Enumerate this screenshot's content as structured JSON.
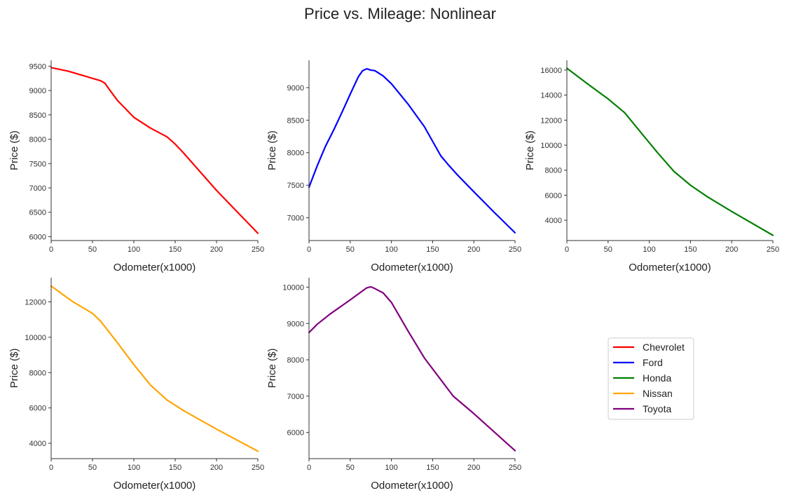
{
  "figure": {
    "title": "Price vs. Mileage: Nonlinear"
  },
  "chart_data": [
    {
      "type": "line",
      "series": [
        {
          "name": "Chevrolet",
          "color": "#ff0000",
          "x": [
            0,
            20,
            40,
            60,
            65,
            70,
            80,
            100,
            120,
            140,
            150,
            160,
            200,
            250
          ],
          "values": [
            9470,
            9400,
            9300,
            9200,
            9150,
            9030,
            8800,
            8450,
            8230,
            8050,
            7900,
            7720,
            6950,
            6070
          ]
        }
      ],
      "xlabel": "Odometer(x1000)",
      "ylabel": "Price ($)",
      "xlim": [
        0,
        250
      ],
      "ylim": [
        5920,
        9620
      ],
      "xticks": [
        0,
        50,
        100,
        150,
        200,
        250
      ],
      "yticks": [
        6000,
        6500,
        7000,
        7500,
        8000,
        8500,
        9000,
        9500
      ],
      "grid": false
    },
    {
      "type": "line",
      "series": [
        {
          "name": "Ford",
          "color": "#0000ff",
          "x": [
            0,
            10,
            20,
            30,
            40,
            50,
            60,
            65,
            70,
            75,
            80,
            90,
            100,
            120,
            140,
            160,
            170,
            180,
            200,
            225,
            250
          ],
          "values": [
            7470,
            7800,
            8100,
            8350,
            8620,
            8900,
            9170,
            9260,
            9290,
            9270,
            9260,
            9180,
            9060,
            8750,
            8400,
            7950,
            7800,
            7660,
            7400,
            7080,
            6770
          ]
        }
      ],
      "xlabel": "Odometer(x1000)",
      "ylabel": "Price ($)",
      "xlim": [
        0,
        250
      ],
      "ylim": [
        6650,
        9420
      ],
      "xticks": [
        0,
        50,
        100,
        150,
        200,
        250
      ],
      "yticks": [
        7000,
        7500,
        8000,
        8500,
        9000
      ],
      "grid": false
    },
    {
      "type": "line",
      "series": [
        {
          "name": "Honda",
          "color": "#008000",
          "x": [
            0,
            25,
            50,
            70,
            90,
            110,
            130,
            150,
            170,
            200,
            250
          ],
          "values": [
            16150,
            14900,
            13700,
            12600,
            11000,
            9400,
            7900,
            6800,
            5900,
            4700,
            2800
          ]
        }
      ],
      "xlabel": "Odometer(x1000)",
      "ylabel": "Price ($)",
      "xlim": [
        0,
        250
      ],
      "ylim": [
        2380,
        16780
      ],
      "xticks": [
        0,
        50,
        100,
        150,
        200,
        250
      ],
      "yticks": [
        4000,
        6000,
        8000,
        10000,
        12000,
        14000,
        16000
      ],
      "grid": false
    },
    {
      "type": "line",
      "series": [
        {
          "name": "Nissan",
          "color": "#ffa500",
          "x": [
            0,
            25,
            50,
            60,
            80,
            100,
            120,
            140,
            160,
            200,
            250
          ],
          "values": [
            12900,
            12050,
            11350,
            10900,
            9700,
            8450,
            7300,
            6450,
            5850,
            4800,
            3550
          ]
        }
      ],
      "xlabel": "Odometer(x1000)",
      "ylabel": "Price ($)",
      "xlim": [
        0,
        250
      ],
      "ylim": [
        3130,
        13370
      ],
      "xticks": [
        0,
        50,
        100,
        150,
        200,
        250
      ],
      "yticks": [
        4000,
        6000,
        8000,
        10000,
        12000
      ],
      "grid": false
    },
    {
      "type": "line",
      "series": [
        {
          "name": "Toyota",
          "color": "#800080",
          "x": [
            0,
            10,
            25,
            50,
            70,
            75,
            80,
            90,
            100,
            120,
            140,
            160,
            175,
            200,
            250
          ],
          "values": [
            8750,
            8980,
            9250,
            9650,
            9980,
            10010,
            9960,
            9840,
            9580,
            8800,
            8050,
            7450,
            7000,
            6520,
            5500
          ]
        }
      ],
      "xlabel": "Odometer(x1000)",
      "ylabel": "Price ($)",
      "xlim": [
        0,
        250
      ],
      "ylim": [
        5280,
        10260
      ],
      "xticks": [
        0,
        50,
        100,
        150,
        200,
        250
      ],
      "yticks": [
        6000,
        7000,
        8000,
        9000,
        10000
      ],
      "grid": false
    }
  ],
  "legend": {
    "placement": "bottom-right",
    "entries": [
      {
        "label": "Chevrolet",
        "color": "#ff0000"
      },
      {
        "label": "Ford",
        "color": "#0000ff"
      },
      {
        "label": "Honda",
        "color": "#008000"
      },
      {
        "label": "Nissan",
        "color": "#ffa500"
      },
      {
        "label": "Toyota",
        "color": "#800080"
      }
    ]
  }
}
